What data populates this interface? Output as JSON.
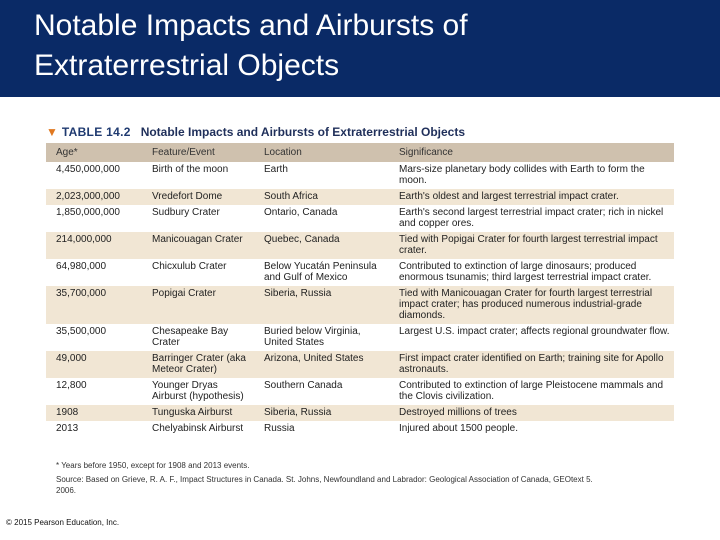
{
  "header": {
    "title": "Notable Impacts and Airbursts of\nExtraterrestrial Objects"
  },
  "table": {
    "number": "TABLE 14.2",
    "caption": "Notable Impacts and Airbursts of Extraterrestrial Objects",
    "columns": [
      "Age*",
      "Feature/Event",
      "Location",
      "Significance"
    ],
    "rows": [
      [
        "4,450,000,000",
        "Birth of the moon",
        "Earth",
        "Mars-size planetary body collides with Earth to form the moon."
      ],
      [
        "2,023,000,000",
        "Vredefort Dome",
        "South Africa",
        "Earth's oldest and largest terrestrial impact crater."
      ],
      [
        "1,850,000,000",
        "Sudbury Crater",
        "Ontario, Canada",
        "Earth's second largest terrestrial impact crater; rich in nickel and copper ores."
      ],
      [
        "214,000,000",
        "Manicouagan Crater",
        "Quebec, Canada",
        "Tied with Popigai Crater for fourth largest terrestrial impact crater."
      ],
      [
        "64,980,000",
        "Chicxulub Crater",
        "Below Yucatán Peninsula and Gulf of Mexico",
        "Contributed to extinction of large dinosaurs; produced enormous tsunamis; third largest terrestrial impact crater."
      ],
      [
        "35,700,000",
        "Popigai Crater",
        "Siberia, Russia",
        "Tied with Manicouagan Crater for fourth largest terrestrial impact crater; has produced numerous industrial-grade diamonds."
      ],
      [
        "35,500,000",
        "Chesapeake Bay Crater",
        "Buried below Virginia, United States",
        "Largest U.S. impact crater; affects regional groundwater flow."
      ],
      [
        "49,000",
        "Barringer Crater (aka Meteor Crater)",
        "Arizona, United States",
        "First impact crater identified on Earth; training site for Apollo astronauts."
      ],
      [
        "12,800",
        "Younger Dryas Airburst (hypothesis)",
        "Southern Canada",
        "Contributed to extinction of large Pleistocene mammals and the Clovis civilization."
      ],
      [
        "1908",
        "Tunguska Airburst",
        "Siberia, Russia",
        "Destroyed millions of trees"
      ],
      [
        "2013",
        "Chelyabinsk Airburst",
        "Russia",
        "Injured about 1500 people."
      ]
    ],
    "footnote": "* Years before 1950, except for 1908 and 2013 events.",
    "source": "Source: Based on Grieve, R. A. F., Impact Structures in Canada. St. Johns, Newfoundland and Labrador: Geological Association of Canada, GEOtext 5. 2006."
  },
  "footer": {
    "copyright": "© 2015 Pearson Education, Inc."
  }
}
